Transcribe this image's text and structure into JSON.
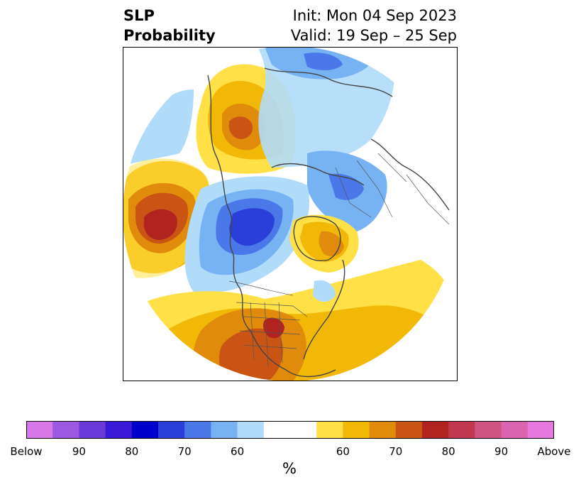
{
  "header": {
    "left_line1": "SLP",
    "left_line2": "Probability",
    "right_line1": "Init: Mon 04 Sep 2023",
    "right_line2": "Valid: 19 Sep – 25 Sep"
  },
  "colorbar": {
    "unit": "%",
    "colors": [
      "#d777e8",
      "#9c58e0",
      "#6a3ad9",
      "#3a1ad6",
      "#0000cc",
      "#2a3fd8",
      "#4a78e8",
      "#77b2f3",
      "#b0dcfa",
      "#ffffff",
      "#ffe047",
      "#f2b807",
      "#e08b0c",
      "#c95414",
      "#b0231e",
      "#c23750",
      "#cf5482",
      "#db64b0",
      "#e678de"
    ],
    "tick_labels": [
      "Below",
      "90",
      "80",
      "70",
      "60",
      "60",
      "70",
      "80",
      "90",
      "Above"
    ]
  },
  "map": {
    "projection": "north-polar-stereographic",
    "palette": {
      "ocean": "#ffffff",
      "coast": "#444444",
      "border": "#555555",
      "lightblue": "#b0dcfa",
      "blue": "#77b2f3",
      "medblue": "#4a78e8",
      "darkblue": "#2a3fd8",
      "lightyellow": "#ffe047",
      "yellow": "#f2b807",
      "orange": "#e08b0c",
      "darkorange": "#c95414",
      "red": "#b0231e"
    }
  }
}
